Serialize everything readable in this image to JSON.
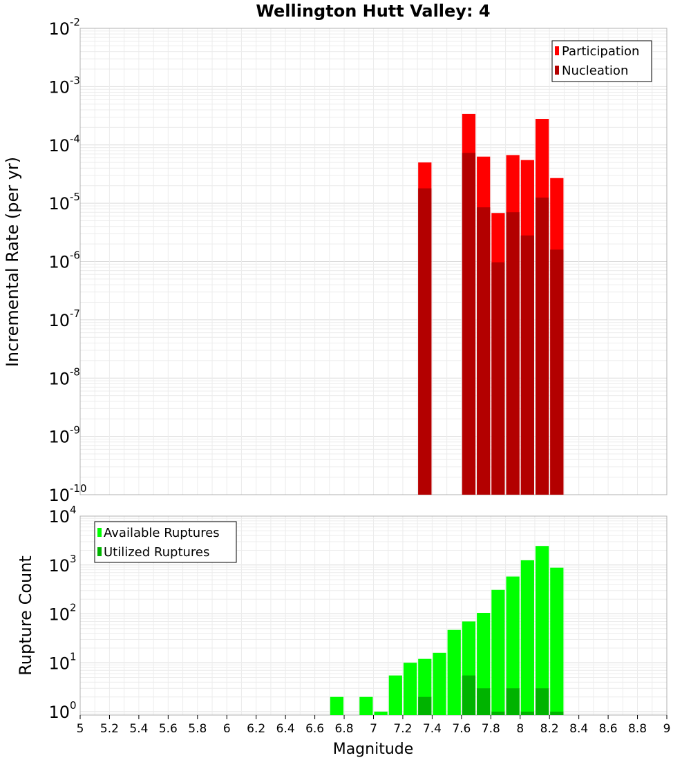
{
  "chart_data": [
    {
      "type": "bar",
      "title": "Wellington Hutt Valley: 4",
      "ylabel": "Incremental Rate (per yr)",
      "xlabel": "",
      "yscale": "log",
      "ylim": [
        1e-10,
        0.01
      ],
      "xlim": [
        5,
        9
      ],
      "grid": true,
      "legend_position": "top-right",
      "x": [
        7.35,
        7.65,
        7.75,
        7.85,
        7.95,
        8.05,
        8.15,
        8.25
      ],
      "series": [
        {
          "name": "Participation",
          "color": "#ff0000",
          "values": [
            5e-05,
            0.00034,
            6.3e-05,
            6.8e-06,
            6.7e-05,
            5.5e-05,
            0.00028,
            2.7e-05
          ]
        },
        {
          "name": "Nucleation",
          "color": "#b30000",
          "values": [
            1.8e-05,
            7.3e-05,
            8.5e-06,
            9.7e-07,
            7e-06,
            2.8e-06,
            1.25e-05,
            1.6e-06
          ]
        }
      ],
      "y_ticks": [
        {
          "base": "10",
          "exp": "-2"
        },
        {
          "base": "10",
          "exp": "-3"
        },
        {
          "base": "10",
          "exp": "-4"
        },
        {
          "base": "10",
          "exp": "-5"
        },
        {
          "base": "10",
          "exp": "-6"
        },
        {
          "base": "10",
          "exp": "-7"
        },
        {
          "base": "10",
          "exp": "-8"
        },
        {
          "base": "10",
          "exp": "-9"
        },
        {
          "base": "10",
          "exp": "-10"
        }
      ]
    },
    {
      "type": "bar",
      "ylabel": "Rupture Count",
      "xlabel": "Magnitude",
      "yscale": "log",
      "ylim": [
        0.85,
        10000
      ],
      "xlim": [
        5,
        9
      ],
      "grid": true,
      "legend_position": "top-left",
      "x": [
        6.75,
        6.95,
        7.05,
        7.15,
        7.25,
        7.35,
        7.45,
        7.55,
        7.65,
        7.75,
        7.85,
        7.95,
        8.05,
        8.15,
        8.25
      ],
      "series": [
        {
          "name": "Available Ruptures",
          "color": "#00ff00",
          "values": [
            2,
            2,
            1,
            5.5,
            10,
            12,
            16,
            47,
            70,
            105,
            310,
            580,
            1250,
            2450,
            880
          ]
        },
        {
          "name": "Utilized Ruptures",
          "color": "#00b300",
          "values": [
            0,
            0,
            0,
            0,
            0,
            2,
            0,
            0,
            5.5,
            3,
            1,
            3,
            1,
            3,
            1
          ]
        }
      ],
      "y_ticks": [
        {
          "base": "10",
          "exp": "4"
        },
        {
          "base": "10",
          "exp": "3"
        },
        {
          "base": "10",
          "exp": "2"
        },
        {
          "base": "10",
          "exp": "1"
        },
        {
          "base": "10",
          "exp": "0"
        }
      ],
      "x_ticks": [
        "5",
        "5.2",
        "5.4",
        "5.6",
        "5.8",
        "6",
        "6.2",
        "6.4",
        "6.6",
        "6.8",
        "7",
        "7.2",
        "7.4",
        "7.6",
        "7.8",
        "8",
        "8.2",
        "8.4",
        "8.6",
        "8.8",
        "9"
      ]
    }
  ]
}
